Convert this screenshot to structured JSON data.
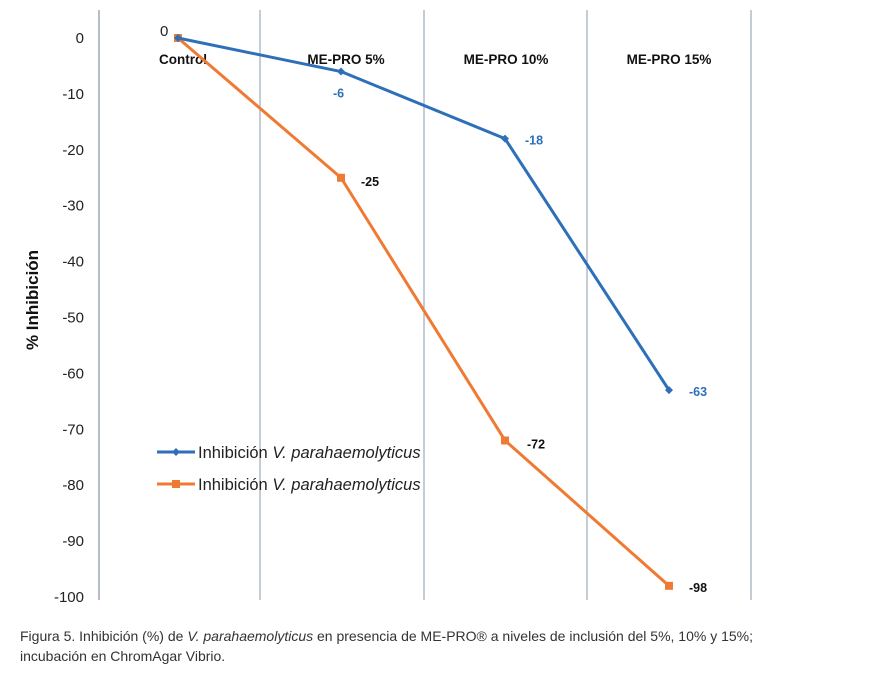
{
  "chart_data": {
    "type": "line",
    "title": "",
    "xlabel": "",
    "ylabel": "% Inhibición",
    "ylim": [
      -100,
      0
    ],
    "yticks": [
      0,
      -10,
      -20,
      -30,
      -40,
      -50,
      -60,
      -70,
      -80,
      -90,
      -100
    ],
    "categories": [
      "Control",
      "ME-PRO 5%",
      "ME-PRO 10%",
      "ME-PRO 15%"
    ],
    "series": [
      {
        "name": "Inhibición V. parahaemolyticus",
        "name_prefix": "Inhibición ",
        "name_italic": "V. parahaemolyticus",
        "color": "#2e6fba",
        "marker": "diamond",
        "values": [
          0,
          -6,
          -18,
          -63
        ],
        "labels": [
          "",
          "-6",
          "-18",
          "-63"
        ],
        "label_color": "#2e6fba"
      },
      {
        "name": "Inhibición V. parahaemolyticus",
        "name_prefix": "Inhibición ",
        "name_italic": "V. parahaemolyticus",
        "color": "#ef7a34",
        "marker": "square",
        "values": [
          0,
          -25,
          -72,
          -98
        ],
        "labels": [
          "0",
          "-25",
          "-72",
          "-98"
        ],
        "label_color": "#111111"
      }
    ],
    "legend_position": "lower-left"
  },
  "caption": {
    "prefix": "Figura 5. Inhibición (%) de ",
    "italic": "V. parahaemolyticus",
    "suffix": " en presencia de ME-PRO® a niveles de inclusión del 5%, 10% y 15%;",
    "line2": "incubación en ChromAgar Vibrio."
  }
}
